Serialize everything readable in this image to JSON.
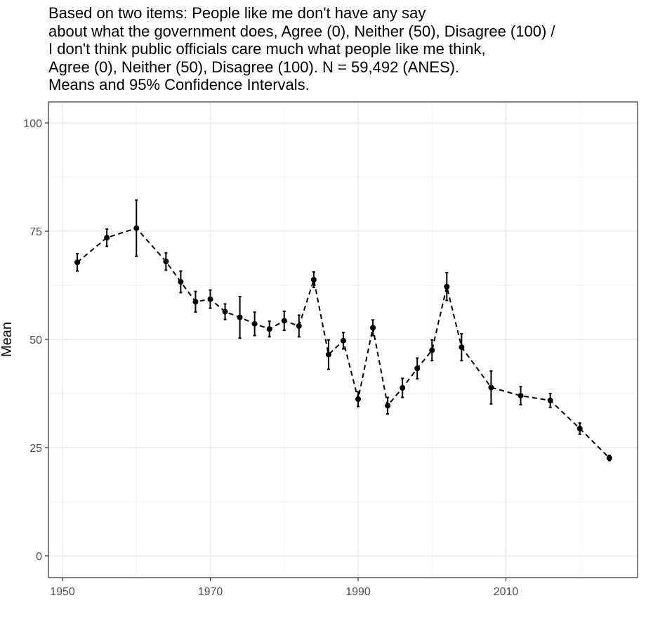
{
  "subtitle_lines": [
    "Based on two items: People like me don't have any say",
    "about what the government does, Agree (0), Neither (50), Disagree (100) /",
    "I don't think public officials care much what people like me think,",
    "Agree (0), Neither (50), Disagree (100). N = 59,492 (ANES).",
    "Means and 95% Confidence Intervals."
  ],
  "chart_data": {
    "type": "line",
    "title": "",
    "xlabel": "",
    "ylabel": "Mean",
    "xlim": [
      1948,
      2027
    ],
    "ylim": [
      -5,
      103
    ],
    "x_ticks": [
      1950,
      1970,
      1990,
      2010
    ],
    "y_ticks": [
      0,
      25,
      50,
      75,
      100
    ],
    "grid": true,
    "line_style": "dashed",
    "color": "#000000",
    "series": [
      {
        "x": [
          1952,
          1956,
          1960,
          1964,
          1966,
          1968,
          1970,
          1972,
          1974,
          1976,
          1978,
          1980,
          1982,
          1984,
          1986,
          1988,
          1990,
          1992,
          1994,
          1996,
          1998,
          2000,
          2002,
          2004,
          2008,
          2012,
          2016,
          2020,
          2024
        ],
        "y": [
          67.8,
          73.5,
          75.7,
          68.0,
          63.3,
          58.7,
          59.3,
          56.4,
          55.1,
          53.6,
          52.4,
          54.3,
          53.1,
          63.8,
          46.5,
          49.7,
          36.2,
          52.7,
          34.7,
          38.8,
          43.3,
          47.5,
          62.2,
          48.2,
          38.9,
          37.0,
          35.9,
          29.4,
          22.6
        ],
        "lower": [
          65.8,
          71.5,
          69.2,
          66.0,
          60.8,
          56.3,
          57.2,
          54.6,
          50.3,
          50.9,
          50.6,
          52.1,
          50.6,
          62.0,
          43.1,
          47.8,
          34.5,
          50.9,
          32.8,
          36.6,
          40.9,
          45.1,
          59.0,
          45.1,
          35.1,
          34.9,
          34.3,
          28.1,
          22.0
        ],
        "upper": [
          69.8,
          75.5,
          82.2,
          70.0,
          65.8,
          61.1,
          61.4,
          58.2,
          59.9,
          56.3,
          54.2,
          56.5,
          55.6,
          65.6,
          49.9,
          51.6,
          37.9,
          54.5,
          36.6,
          41.0,
          45.7,
          49.9,
          65.4,
          51.3,
          42.7,
          39.1,
          37.5,
          30.7,
          23.2
        ]
      }
    ]
  }
}
